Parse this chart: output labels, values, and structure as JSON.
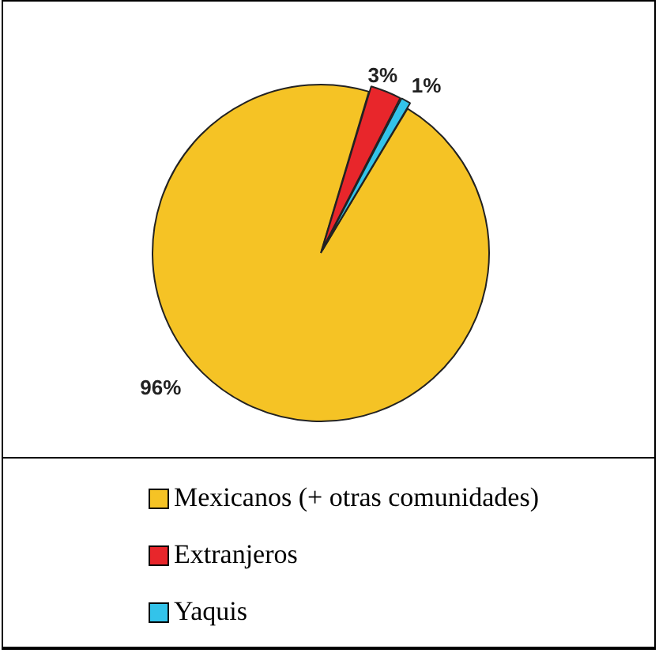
{
  "chart_data": {
    "type": "pie",
    "categories": [
      "Mexicanos (+ otras comunidades)",
      "Extranjeros",
      "Yaquis"
    ],
    "values": [
      96,
      3,
      1
    ],
    "colors": [
      "#f5c325",
      "#e8262b",
      "#33c3ea"
    ],
    "value_labels": [
      "96%",
      "3%",
      "1%"
    ],
    "legend": "bottom"
  }
}
